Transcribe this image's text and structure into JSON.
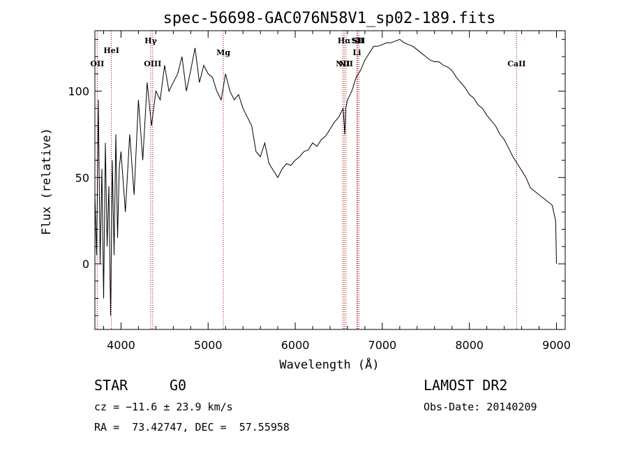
{
  "chart_data": {
    "type": "line",
    "title": "spec-56698-GAC076N58V1_sp02-189.fits",
    "xlabel": "Wavelength (Å)",
    "ylabel": "Flux (relative)",
    "xlim": [
      3700,
      9100
    ],
    "ylim": [
      -38,
      135
    ],
    "xticks": [
      4000,
      5000,
      6000,
      7000,
      8000,
      9000
    ],
    "yticks": [
      0,
      50,
      100
    ],
    "grid": false,
    "series": [
      {
        "x": [
          3700,
          3720,
          3740,
          3760,
          3780,
          3800,
          3820,
          3840,
          3860,
          3880,
          3900,
          3920,
          3940,
          3960,
          3980,
          4000,
          4050,
          4100,
          4150,
          4200,
          4250,
          4300,
          4350,
          4400,
          4450,
          4500,
          4550,
          4600,
          4650,
          4700,
          4750,
          4800,
          4850,
          4900,
          4950,
          5000,
          5050,
          5100,
          5150,
          5200,
          5250,
          5300,
          5350,
          5400,
          5450,
          5500,
          5550,
          5600,
          5650,
          5700,
          5750,
          5800,
          5850,
          5900,
          5950,
          6000,
          6050,
          6100,
          6150,
          6200,
          6250,
          6300,
          6350,
          6400,
          6450,
          6500,
          6550,
          6570,
          6580,
          6600,
          6650,
          6700,
          6750,
          6800,
          6850,
          6900,
          6950,
          7000,
          7050,
          7100,
          7150,
          7200,
          7250,
          7300,
          7350,
          7400,
          7450,
          7500,
          7550,
          7600,
          7650,
          7700,
          7750,
          7800,
          7850,
          7900,
          7950,
          8000,
          8050,
          8100,
          8150,
          8200,
          8250,
          8300,
          8350,
          8400,
          8450,
          8500,
          8550,
          8600,
          8650,
          8700,
          8750,
          8800,
          8850,
          8900,
          8950,
          8990,
          9000
        ],
        "y": [
          40,
          5,
          95,
          0,
          55,
          -20,
          70,
          10,
          45,
          -30,
          60,
          5,
          75,
          15,
          55,
          65,
          30,
          75,
          40,
          95,
          60,
          105,
          80,
          100,
          95,
          115,
          100,
          105,
          110,
          120,
          100,
          112,
          125,
          105,
          115,
          110,
          108,
          100,
          95,
          110,
          100,
          95,
          98,
          90,
          85,
          80,
          65,
          62,
          70,
          58,
          54,
          50,
          55,
          58,
          57,
          60,
          62,
          65,
          66,
          70,
          68,
          72,
          74,
          78,
          82,
          85,
          90,
          75,
          90,
          95,
          100,
          108,
          112,
          118,
          122,
          126,
          126,
          127,
          128,
          128,
          129,
          130,
          128,
          127,
          126,
          124,
          122,
          120,
          118,
          117,
          117,
          115,
          114,
          112,
          108,
          105,
          102,
          98,
          96,
          92,
          90,
          86,
          83,
          80,
          75,
          72,
          67,
          62,
          58,
          54,
          50,
          44,
          42,
          40,
          38,
          36,
          34,
          25,
          0
        ]
      }
    ],
    "line_markers": [
      {
        "name": "OII",
        "wavelength": 3727
      },
      {
        "name": "HeI",
        "wavelength": 3889
      },
      {
        "name": "Hγ",
        "wavelength": 4341
      },
      {
        "name": "OIII",
        "wavelength": 4363
      },
      {
        "name": "Mg",
        "wavelength": 5175
      },
      {
        "name": "NII",
        "wavelength": 6548
      },
      {
        "name": "Hα",
        "wavelength": 6563
      },
      {
        "name": "NII",
        "wavelength": 6583
      },
      {
        "name": "Li",
        "wavelength": 6708
      },
      {
        "name": "SII",
        "wavelength": 6716
      },
      {
        "name": "SII",
        "wavelength": 6731
      },
      {
        "name": "CaII",
        "wavelength": 8542
      }
    ],
    "marker_color": "#990000"
  },
  "info": {
    "object_type": "STAR",
    "subclass": "G0",
    "survey": "LAMOST DR2",
    "redshift": "cz = −11.6 ± 23.9 km/s",
    "obs_date": "Obs-Date: 20140209",
    "coords": "RA =  73.42747, DEC =  57.55958"
  }
}
